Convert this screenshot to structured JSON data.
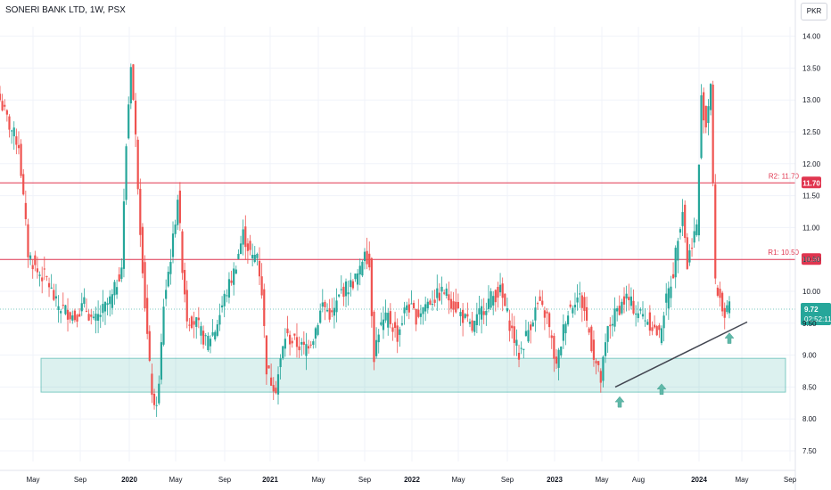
{
  "header": {
    "title": "SONERI BANK LTD, 1W, PSX",
    "currency": "PKR"
  },
  "chart_data": {
    "type": "candlestick",
    "title": "SONERI BANK LTD, 1W, PSX",
    "ylim": [
      7.3,
      14.15
    ],
    "y_ticks": [
      "7.50",
      "8.00",
      "8.50",
      "9.00",
      "9.50",
      "10.00",
      "10.50",
      "11.00",
      "11.50",
      "12.00",
      "12.50",
      "13.00",
      "13.50",
      "14.00"
    ],
    "x_ticks": [
      {
        "label": "May",
        "bold": false
      },
      {
        "label": "Sep",
        "bold": false
      },
      {
        "label": "2020",
        "bold": true
      },
      {
        "label": "May",
        "bold": false
      },
      {
        "label": "Sep",
        "bold": false
      },
      {
        "label": "2021",
        "bold": true
      },
      {
        "label": "May",
        "bold": false
      },
      {
        "label": "Sep",
        "bold": false
      },
      {
        "label": "2022",
        "bold": true
      },
      {
        "label": "May",
        "bold": false
      },
      {
        "label": "Sep",
        "bold": false
      },
      {
        "label": "2023",
        "bold": true
      },
      {
        "label": "May",
        "bold": false
      },
      {
        "label": "Aug",
        "bold": false
      },
      {
        "label": "2024",
        "bold": true
      },
      {
        "label": "May",
        "bold": false
      },
      {
        "label": "Sep",
        "bold": false
      }
    ],
    "resistance": [
      {
        "label": "R2: 11.70",
        "value": 11.7
      },
      {
        "label": "R1: 10.50",
        "value": 10.5
      }
    ],
    "current_price": {
      "value": 9.72,
      "label": "9.72",
      "countdown": "02:52:11"
    },
    "support_zone": {
      "low": 8.42,
      "high": 8.95
    },
    "trendline": {
      "from_price": 8.5,
      "to_price": 9.52
    },
    "key_prices": [
      [
        0,
        13.0
      ],
      [
        4,
        12.6
      ],
      [
        8,
        12.3
      ],
      [
        12,
        10.6
      ],
      [
        16,
        10.3
      ],
      [
        20,
        10.2
      ],
      [
        24,
        9.8
      ],
      [
        28,
        9.7
      ],
      [
        32,
        9.6
      ],
      [
        36,
        9.8
      ],
      [
        40,
        9.5
      ],
      [
        44,
        9.7
      ],
      [
        48,
        9.9
      ],
      [
        52,
        10.4
      ],
      [
        54,
        12.3
      ],
      [
        56,
        13.6
      ],
      [
        58,
        12.4
      ],
      [
        60,
        11.0
      ],
      [
        62,
        9.8
      ],
      [
        64,
        8.8
      ],
      [
        66,
        8.1
      ],
      [
        68,
        8.5
      ],
      [
        70,
        9.8
      ],
      [
        74,
        10.8
      ],
      [
        76,
        11.5
      ],
      [
        78,
        10.4
      ],
      [
        80,
        9.6
      ],
      [
        84,
        9.5
      ],
      [
        88,
        9.2
      ],
      [
        92,
        9.4
      ],
      [
        96,
        9.9
      ],
      [
        100,
        10.3
      ],
      [
        104,
        10.9
      ],
      [
        108,
        10.5
      ],
      [
        110,
        10.6
      ],
      [
        112,
        10.0
      ],
      [
        114,
        8.8
      ],
      [
        116,
        8.6
      ],
      [
        118,
        8.5
      ],
      [
        122,
        9.3
      ],
      [
        126,
        9.2
      ],
      [
        130,
        9.1
      ],
      [
        134,
        9.3
      ],
      [
        138,
        9.8
      ],
      [
        142,
        9.6
      ],
      [
        146,
        10.0
      ],
      [
        150,
        10.1
      ],
      [
        154,
        10.3
      ],
      [
        156,
        10.7
      ],
      [
        158,
        10.4
      ],
      [
        160,
        9.0
      ],
      [
        162,
        9.4
      ],
      [
        166,
        9.6
      ],
      [
        170,
        9.3
      ],
      [
        174,
        9.8
      ],
      [
        178,
        9.6
      ],
      [
        182,
        9.8
      ],
      [
        186,
        9.9
      ],
      [
        190,
        10.0
      ],
      [
        194,
        9.8
      ],
      [
        198,
        9.6
      ],
      [
        202,
        9.4
      ],
      [
        206,
        9.7
      ],
      [
        210,
        9.9
      ],
      [
        214,
        10.0
      ],
      [
        218,
        9.5
      ],
      [
        222,
        9.0
      ],
      [
        226,
        9.4
      ],
      [
        230,
        9.8
      ],
      [
        234,
        9.6
      ],
      [
        238,
        8.8
      ],
      [
        242,
        9.6
      ],
      [
        246,
        9.9
      ],
      [
        248,
        9.9
      ],
      [
        250,
        9.7
      ],
      [
        254,
        9.0
      ],
      [
        257,
        8.6
      ],
      [
        260,
        9.4
      ],
      [
        264,
        9.7
      ],
      [
        268,
        9.9
      ],
      [
        272,
        9.7
      ],
      [
        276,
        9.6
      ],
      [
        280,
        9.4
      ],
      [
        282,
        9.3
      ],
      [
        284,
        9.7
      ],
      [
        288,
        10.3
      ],
      [
        290,
        10.9
      ],
      [
        292,
        11.3
      ],
      [
        294,
        10.4
      ],
      [
        296,
        10.8
      ],
      [
        298,
        11.0
      ],
      [
        300,
        13.0
      ],
      [
        302,
        12.6
      ],
      [
        304,
        13.3
      ],
      [
        306,
        10.1
      ],
      [
        308,
        9.9
      ],
      [
        310,
        9.6
      ],
      [
        312,
        9.72
      ]
    ]
  }
}
